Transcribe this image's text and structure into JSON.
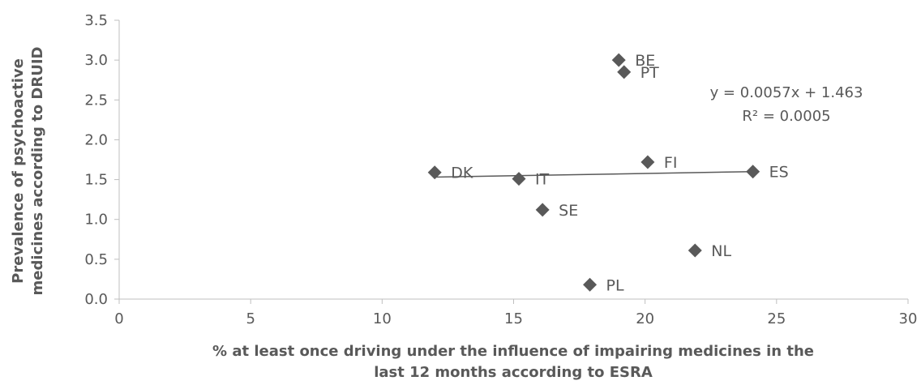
{
  "chart_data": {
    "type": "scatter",
    "title": "",
    "xlabel_lines": [
      "% at least once driving under the influence of impairing medicines in the",
      "last 12 months according to ESRA"
    ],
    "ylabel_lines": [
      "Prevalence of psychoactive",
      "medicines according to DRUID"
    ],
    "xlim": [
      0,
      30
    ],
    "ylim": [
      0,
      3.5
    ],
    "x_ticks": [
      "0",
      "5",
      "10",
      "15",
      "20",
      "25",
      "30"
    ],
    "y_ticks": [
      "0.0",
      "0.5",
      "1.0",
      "1.5",
      "2.0",
      "2.5",
      "3.0",
      "3.5"
    ],
    "points": [
      {
        "label": "BE",
        "x": 19.0,
        "y": 3.0
      },
      {
        "label": "PT",
        "x": 19.2,
        "y": 2.85
      },
      {
        "label": "FI",
        "x": 20.1,
        "y": 1.72
      },
      {
        "label": "ES",
        "x": 24.1,
        "y": 1.6
      },
      {
        "label": "DK",
        "x": 12.0,
        "y": 1.59
      },
      {
        "label": "IT",
        "x": 15.2,
        "y": 1.51
      },
      {
        "label": "SE",
        "x": 16.1,
        "y": 1.12
      },
      {
        "label": "NL",
        "x": 21.9,
        "y": 0.61
      },
      {
        "label": "PL",
        "x": 17.9,
        "y": 0.18
      }
    ],
    "trendline": {
      "slope": 0.0057,
      "intercept": 1.463,
      "x_range": [
        12.0,
        24.1
      ],
      "equation": "y = 0.0057x + 1.463",
      "r_squared": "R² = 0.0005"
    },
    "grid": false,
    "marker": "diamond",
    "marker_color": "#595959",
    "axis_color": "#bfbfbf",
    "text_color": "#595959"
  }
}
